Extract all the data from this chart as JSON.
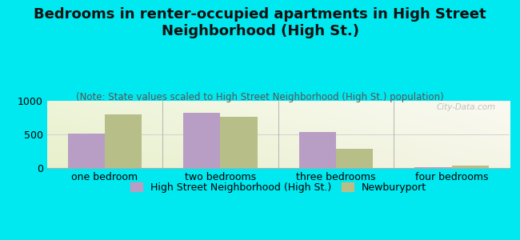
{
  "title": "Bedrooms in renter-occupied apartments in High Street\nNeighborhood (High St.)",
  "subtitle": "(Note: State values scaled to High Street Neighborhood (High St.) population)",
  "categories": [
    "one bedroom",
    "two bedrooms",
    "three bedrooms",
    "four bedrooms"
  ],
  "high_st_values": [
    510,
    820,
    535,
    15
  ],
  "newburyport_values": [
    800,
    760,
    285,
    40
  ],
  "high_st_color": "#b89ec4",
  "newburyport_color": "#b8be88",
  "background_outer": "#00e8f0",
  "background_inner": "#e8f2e0",
  "ylim": [
    0,
    1000
  ],
  "yticks": [
    0,
    500,
    1000
  ],
  "bar_width": 0.32,
  "title_fontsize": 13,
  "subtitle_fontsize": 8.5,
  "tick_fontsize": 9,
  "legend_fontsize": 9,
  "high_st_label": "High Street Neighborhood (High St.)",
  "newburyport_label": "Newburyport",
  "watermark": "City-Data.com"
}
